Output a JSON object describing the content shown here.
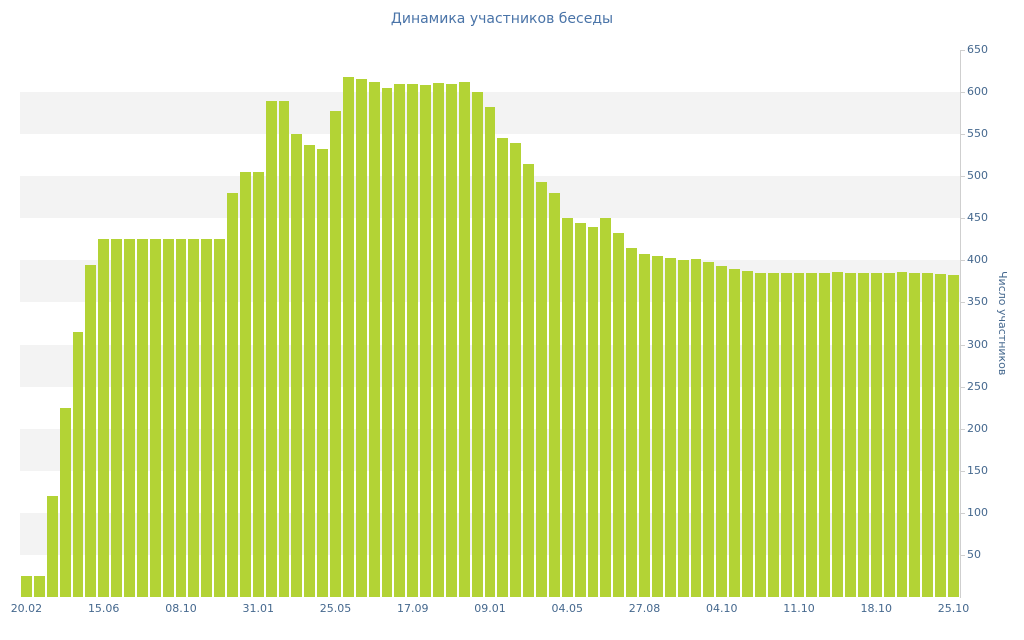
{
  "chart_data": {
    "type": "bar",
    "title": "Динамика участников беседы",
    "ylabel": "Число участников",
    "xlabel": "",
    "ylim": [
      0,
      650
    ],
    "y_ticks": [
      50,
      100,
      150,
      200,
      250,
      300,
      350,
      400,
      450,
      500,
      550,
      600,
      650
    ],
    "x_tick_labels": [
      "20.02",
      "15.06",
      "08.10",
      "31.01",
      "25.05",
      "17.09",
      "09.01",
      "04.05",
      "27.08",
      "04.10",
      "11.10",
      "18.10",
      "25.10"
    ],
    "x_tick_every": 6,
    "band_interval": 50,
    "grid": "alternating horizontal gray bands, white top band",
    "legend": "none",
    "values": [
      25,
      25,
      120,
      225,
      315,
      395,
      425,
      425,
      425,
      425,
      425,
      425,
      425,
      425,
      425,
      425,
      480,
      505,
      505,
      590,
      590,
      550,
      537,
      532,
      578,
      618,
      616,
      612,
      605,
      610,
      610,
      609,
      611,
      610,
      612,
      600,
      582,
      545,
      540,
      515,
      493,
      480,
      450,
      445,
      440,
      450,
      432,
      415,
      408,
      405,
      403,
      400,
      402,
      398,
      393,
      390,
      387,
      385,
      385,
      385,
      385,
      385,
      385,
      386,
      385,
      385,
      385,
      385,
      386,
      385,
      385,
      384,
      383
    ]
  },
  "colors": {
    "bar": "#b3d335",
    "band": "#f3f3f3",
    "title_text": "#4a74a8",
    "tick_text": "#45688e",
    "axis_line": "#cfcfcf"
  }
}
